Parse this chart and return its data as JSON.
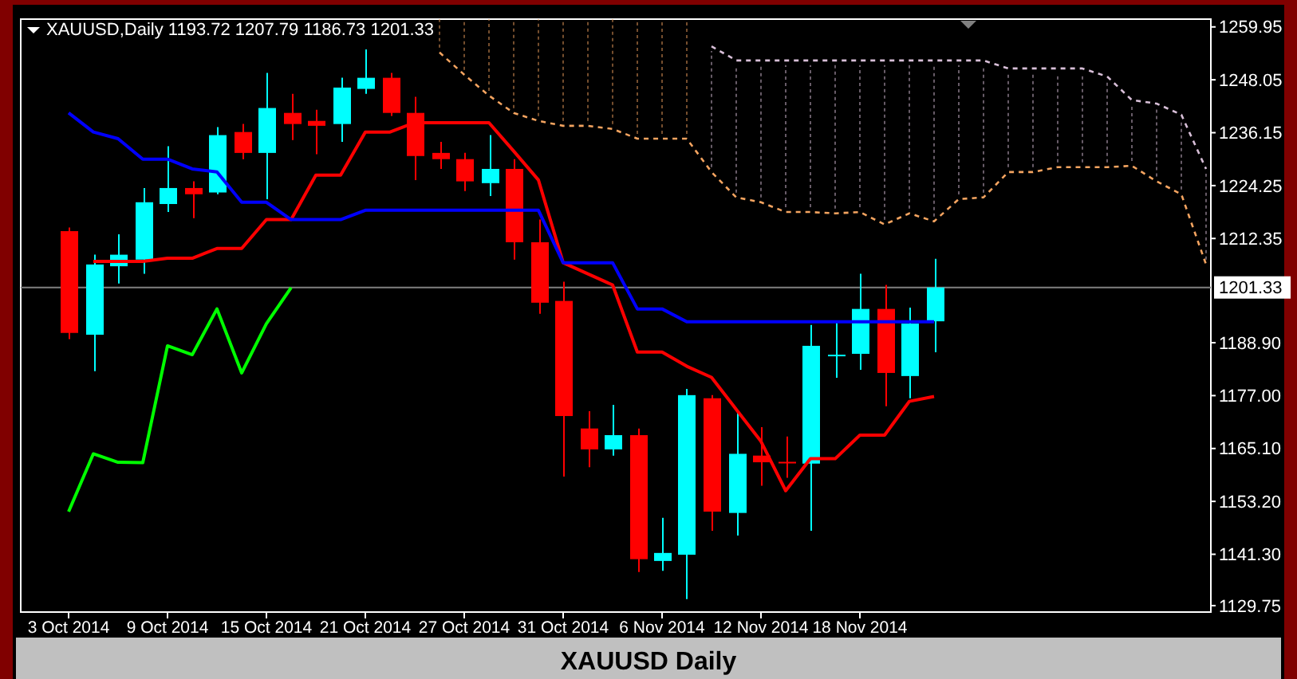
{
  "chart_data": {
    "type": "candlestick",
    "title": "XAUUSD Daily",
    "subtitle": "XAUUSD,Daily 1193.72 1207.79 1186.73 1201.33",
    "categories": [
      "3 Oct 2014",
      null,
      null,
      null,
      "9 Oct 2014",
      null,
      null,
      null,
      "15 Oct 2014",
      null,
      null,
      null,
      "21 Oct 2014",
      null,
      null,
      null,
      "27 Oct 2014",
      null,
      null,
      null,
      "31 Oct 2014",
      null,
      null,
      null,
      "6 Nov 2014",
      null,
      null,
      null,
      "12 Nov 2014",
      null,
      null,
      null,
      "18 Nov 2014",
      null,
      null,
      null,
      null,
      null,
      null,
      null,
      null,
      null,
      null,
      null,
      null,
      null,
      null
    ],
    "ylim": [
      1128.3,
      1261.7
    ],
    "yticks": [
      1259.95,
      1248.05,
      1236.15,
      1224.25,
      1212.35,
      {
        "value": 1188.9,
        "label": "1188.90"
      },
      {
        "value": 1177,
        "label": "1177.00"
      },
      {
        "value": 1165.1,
        "label": "1165.10"
      },
      {
        "value": 1153.2,
        "label": "1153.20"
      },
      {
        "value": 1141.3,
        "label": "1141.30"
      },
      1129.75
    ],
    "grid": false,
    "legend": false,
    "ref_lines": [
      {
        "axis": "y",
        "value": 1201.33,
        "label": "1201.33",
        "color": "#808080"
      }
    ],
    "series": [
      {
        "ohlc": [
          [
            1214.0,
            1214.8,
            1189.7,
            1191.1
          ],
          [
            1190.7,
            1208.7,
            1182.5,
            1206.5
          ],
          [
            1206.1,
            1213.3,
            1202.2,
            1208.7
          ],
          [
            1207.6,
            1223.7,
            1204.4,
            1220.5
          ],
          [
            1220.1,
            1233.1,
            1218.3,
            1223.7
          ],
          [
            1223.7,
            1225.2,
            1216.9,
            1222.3
          ],
          [
            1222.7,
            1237.4,
            1222.3,
            1235.6
          ],
          [
            1236.3,
            1238.1,
            1230.2,
            1231.6
          ],
          [
            1231.6,
            1249.6,
            1221.2,
            1241.7
          ],
          [
            1240.6,
            1244.9,
            1234.5,
            1238.1
          ],
          [
            1238.8,
            1241.3,
            1231.3,
            1237.7
          ],
          [
            1238.1,
            1248.5,
            1234.1,
            1246.3
          ],
          [
            1246.0,
            1254.9,
            1244.9,
            1248.5
          ],
          [
            1248.5,
            1249.6,
            1239.9,
            1240.6
          ],
          [
            1240.6,
            1244.2,
            1225.5,
            1230.9
          ],
          [
            1231.6,
            1234.1,
            1228.0,
            1230.2
          ],
          [
            1230.2,
            1231.6,
            1223.0,
            1225.2
          ],
          [
            1224.8,
            1235.6,
            1221.9,
            1228.0
          ],
          [
            1228.0,
            1230.2,
            1207.6,
            1211.5
          ],
          [
            1211.5,
            1216.6,
            1195.4,
            1197.9
          ],
          [
            1198.3,
            1202.6,
            1158.8,
            1172.4
          ],
          [
            1169.6,
            1173.5,
            1160.9,
            1164.9
          ],
          [
            1164.9,
            1174.9,
            1163.5,
            1168.1
          ],
          [
            1168.1,
            1169.6,
            1137.3,
            1140.2
          ],
          [
            1139.8,
            1149.5,
            1137.6,
            1141.6
          ],
          [
            1141.2,
            1178.5,
            1131.2,
            1177.1
          ],
          [
            1176.4,
            1177.1,
            1146.6,
            1150.9
          ],
          [
            1150.6,
            1173.2,
            1145.5,
            1163.9
          ],
          [
            1163.5,
            1169.9,
            1156.7,
            1162.0
          ],
          [
            1162.1,
            1167.8,
            1158.5,
            1161.9
          ],
          [
            1161.7,
            1192.9,
            1146.6,
            1188.2
          ],
          [
            1185.9,
            1193.6,
            1181.0,
            1186.2
          ],
          [
            1186.4,
            1204.4,
            1182.8,
            1196.5
          ],
          [
            1196.5,
            1201.9,
            1174.6,
            1182.1
          ],
          [
            1181.4,
            1196.8,
            1176.4,
            1193.2
          ],
          [
            1193.72,
            1207.79,
            1186.73,
            1201.33
          ],
          null,
          null,
          null,
          null,
          null,
          null,
          null,
          null,
          null,
          null,
          null
        ],
        "colors": [
          "#ff0000",
          "#00ffff",
          "#00ffff",
          "#00ffff",
          "#00ffff",
          "#ff0000",
          "#00ffff",
          "#ff0000",
          "#00ffff",
          "#ff0000",
          "#ff0000",
          "#00ffff",
          "#00ffff",
          "#ff0000",
          "#ff0000",
          "#ff0000",
          "#ff0000",
          "#00ffff",
          "#ff0000",
          "#ff0000",
          "#ff0000",
          "#ff0000",
          "#00ffff",
          "#ff0000",
          "#00ffff",
          "#00ffff",
          "#ff0000",
          "#00ffff",
          "#ff0000",
          "#ff0000",
          "#00ffff",
          "#00ffff",
          "#00ffff",
          "#ff0000",
          "#00ffff",
          "#00ffff",
          null,
          null,
          null,
          null,
          null,
          null,
          null,
          null,
          null,
          null,
          null
        ]
      },
      {
        "type": "line",
        "color": "#ff0000",
        "values": [
          null,
          1207.2,
          1207.2,
          1207.2,
          1207.9,
          1207.9,
          1210.1,
          1210.1,
          1216.6,
          1216.6,
          1226.6,
          1226.6,
          1236.3,
          1236.3,
          1238.4,
          1238.4,
          1238.4,
          1238.4,
          1232.0,
          1225.5,
          1206.9,
          1204.4,
          1201.9,
          1186.8,
          1186.8,
          1183.6,
          1181.1,
          1173.9,
          1166.7,
          1155.6,
          1162.8,
          1162.8,
          1168.1,
          1168.1,
          1175.7,
          1176.8,
          null,
          null,
          null,
          null,
          null,
          null,
          null,
          null,
          null,
          null,
          null
        ]
      },
      {
        "type": "line",
        "color": "#0000ff",
        "values": [
          1240.6,
          1236.3,
          1234.8,
          1230.2,
          1230.2,
          1228.0,
          1227.3,
          1220.5,
          1220.5,
          1216.6,
          1216.6,
          1216.6,
          1218.7,
          1218.7,
          1218.7,
          1218.7,
          1218.7,
          1218.7,
          1218.7,
          1218.7,
          1206.9,
          1206.9,
          1206.9,
          1196.5,
          1196.5,
          1193.6,
          1193.6,
          1193.6,
          1193.6,
          1193.6,
          1193.6,
          1193.6,
          1193.6,
          1193.6,
          1193.6,
          1193.6,
          null,
          null,
          null,
          null,
          null,
          null,
          null,
          null,
          null,
          null,
          null
        ]
      },
      {
        "type": "line",
        "color": "#00ff00",
        "values": [
          1150.9,
          1163.9,
          1162.0,
          1161.9,
          1188.2,
          1186.2,
          1196.5,
          1182.1,
          1193.2,
          1201.3,
          null,
          null,
          null,
          null,
          null,
          null,
          null,
          null,
          null,
          null,
          null,
          null,
          null,
          null,
          null,
          null,
          null,
          null,
          null,
          null,
          null,
          null,
          null,
          null,
          null,
          null,
          null,
          null,
          null,
          null,
          null,
          null,
          null,
          null,
          null,
          null,
          null
        ]
      },
      {
        "type": "line",
        "color": "#f4a460",
        "line_style": "dashed",
        "values": [
          null,
          null,
          null,
          null,
          null,
          null,
          null,
          null,
          null,
          null,
          null,
          null,
          null,
          null,
          null,
          1254.2,
          1249.2,
          1244.5,
          1240.6,
          1238.8,
          1237.7,
          1237.7,
          1237.0,
          1234.8,
          1234.8,
          1234.8,
          1227.3,
          1221.6,
          1220.5,
          1218.3,
          1218.3,
          1218.0,
          1218.3,
          1215.5,
          1218.0,
          1216.2,
          1221.2,
          1221.6,
          1227.3,
          1227.3,
          1228.4,
          1228.4,
          1228.4,
          1228.7,
          1225.2,
          1222.3,
          1206.5
        ]
      },
      {
        "type": "line",
        "color": "#d8bfd8",
        "line_style": "dashed",
        "values": [
          null,
          null,
          null,
          null,
          null,
          null,
          null,
          null,
          null,
          null,
          null,
          null,
          null,
          null,
          null,
          null,
          null,
          null,
          null,
          null,
          null,
          null,
          null,
          null,
          null,
          null,
          1255.6,
          1252.4,
          1252.4,
          1252.4,
          1252.4,
          1252.4,
          1252.4,
          1252.4,
          1252.4,
          1252.4,
          1252.4,
          1252.4,
          1250.6,
          1250.6,
          1250.6,
          1250.6,
          1248.8,
          1243.5,
          1242.7,
          1240.2,
          1228.0
        ]
      }
    ]
  }
}
